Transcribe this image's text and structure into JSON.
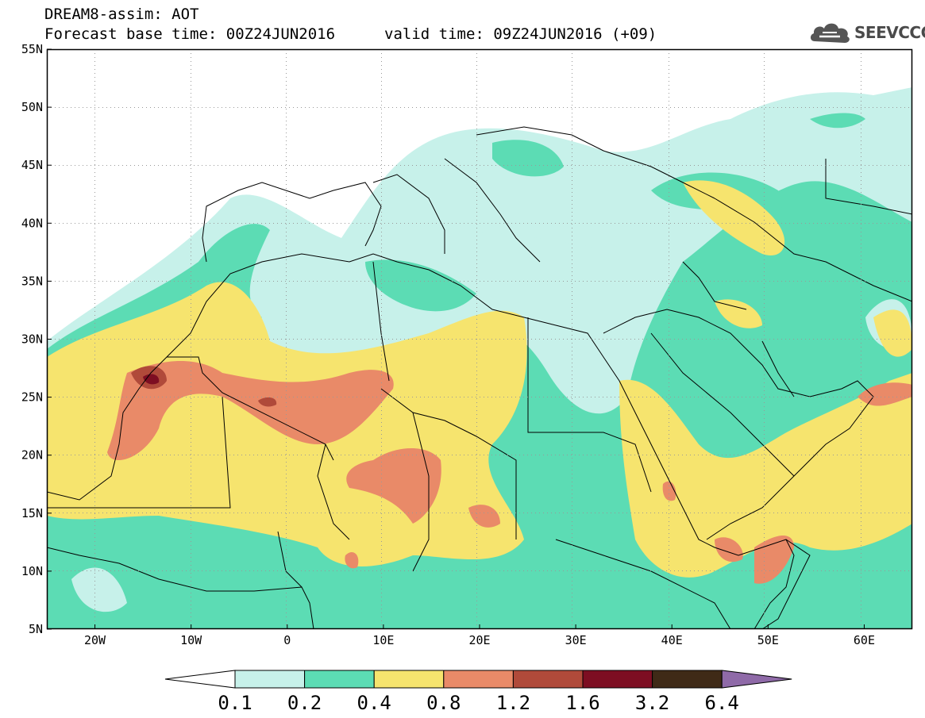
{
  "header": {
    "title_line1": "DREAM8-assim: AOT",
    "base_time_label": "Forecast base time: 00Z24JUN2016",
    "valid_time_label": "valid time: 09Z24JUN2016 (+09)"
  },
  "logo": {
    "text": "SEEVCCC",
    "icon": "cloud-logo-icon"
  },
  "map": {
    "extent": {
      "lon": [
        -25,
        65
      ],
      "lat": [
        5,
        55
      ]
    },
    "lat_ticks": [
      {
        "value": 55,
        "label": "55N"
      },
      {
        "value": 50,
        "label": "50N"
      },
      {
        "value": 45,
        "label": "45N"
      },
      {
        "value": 40,
        "label": "40N"
      },
      {
        "value": 35,
        "label": "35N"
      },
      {
        "value": 30,
        "label": "30N"
      },
      {
        "value": 25,
        "label": "25N"
      },
      {
        "value": 20,
        "label": "20N"
      },
      {
        "value": 15,
        "label": "15N"
      },
      {
        "value": 10,
        "label": "10N"
      },
      {
        "value": 5,
        "label": "5N"
      }
    ],
    "lon_ticks": [
      {
        "value": -20,
        "label": "20W"
      },
      {
        "value": -10,
        "label": "10W"
      },
      {
        "value": 0,
        "label": "0"
      },
      {
        "value": 10,
        "label": "10E"
      },
      {
        "value": 20,
        "label": "20E"
      },
      {
        "value": 30,
        "label": "30E"
      },
      {
        "value": 40,
        "label": "40E"
      },
      {
        "value": 50,
        "label": "50E"
      },
      {
        "value": 60,
        "label": "60E"
      }
    ]
  },
  "colorbar": {
    "colors": [
      "#c7f1ea",
      "#5cdcb4",
      "#f6e46e",
      "#e98a68",
      "#b04a3a",
      "#7d0e22",
      "#3f2a17"
    ],
    "under_color": "#ffffff",
    "over_color": "#8f6aa8",
    "labels": [
      "0.1",
      "0.2",
      "0.4",
      "0.8",
      "1.2",
      "1.6",
      "3.2",
      "6.4"
    ]
  }
}
